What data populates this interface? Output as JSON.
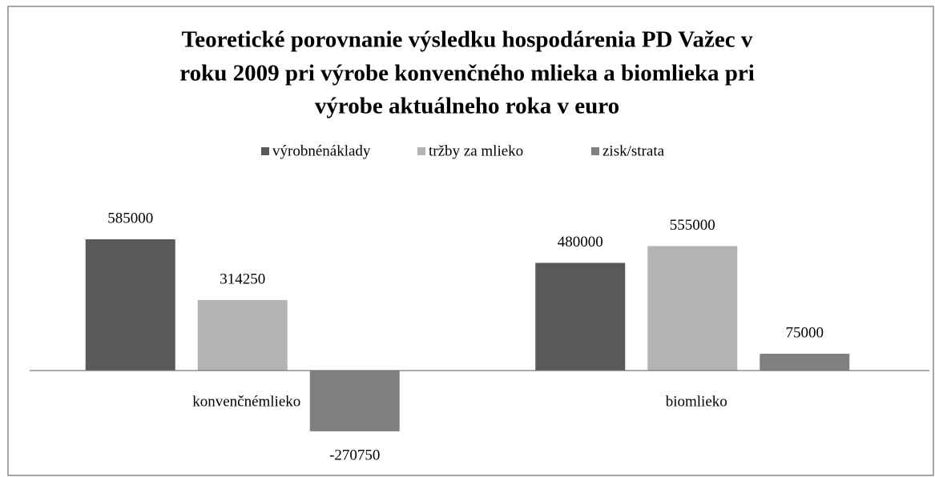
{
  "chart_data": {
    "type": "bar",
    "title": [
      "Teoretické porovnanie výsledku hospodárenia PD Važec v",
      "roku 2009 pri výrobe konvenčného mlieka a biomlieka pri",
      "výrobe aktuálneho roka v euro"
    ],
    "categories": [
      "konvenčnémlieko",
      "biomlieko"
    ],
    "series": [
      {
        "name": "výrobnénáklady",
        "color": "#595959",
        "values": [
          585000,
          480000
        ]
      },
      {
        "name": "tržby za mlieko",
        "color": "#b3b3b3",
        "values": [
          314250,
          555000
        ]
      },
      {
        "name": "zisk/strata",
        "color": "#808080",
        "values": [
          -270750,
          75000
        ]
      }
    ],
    "legend": "top"
  }
}
